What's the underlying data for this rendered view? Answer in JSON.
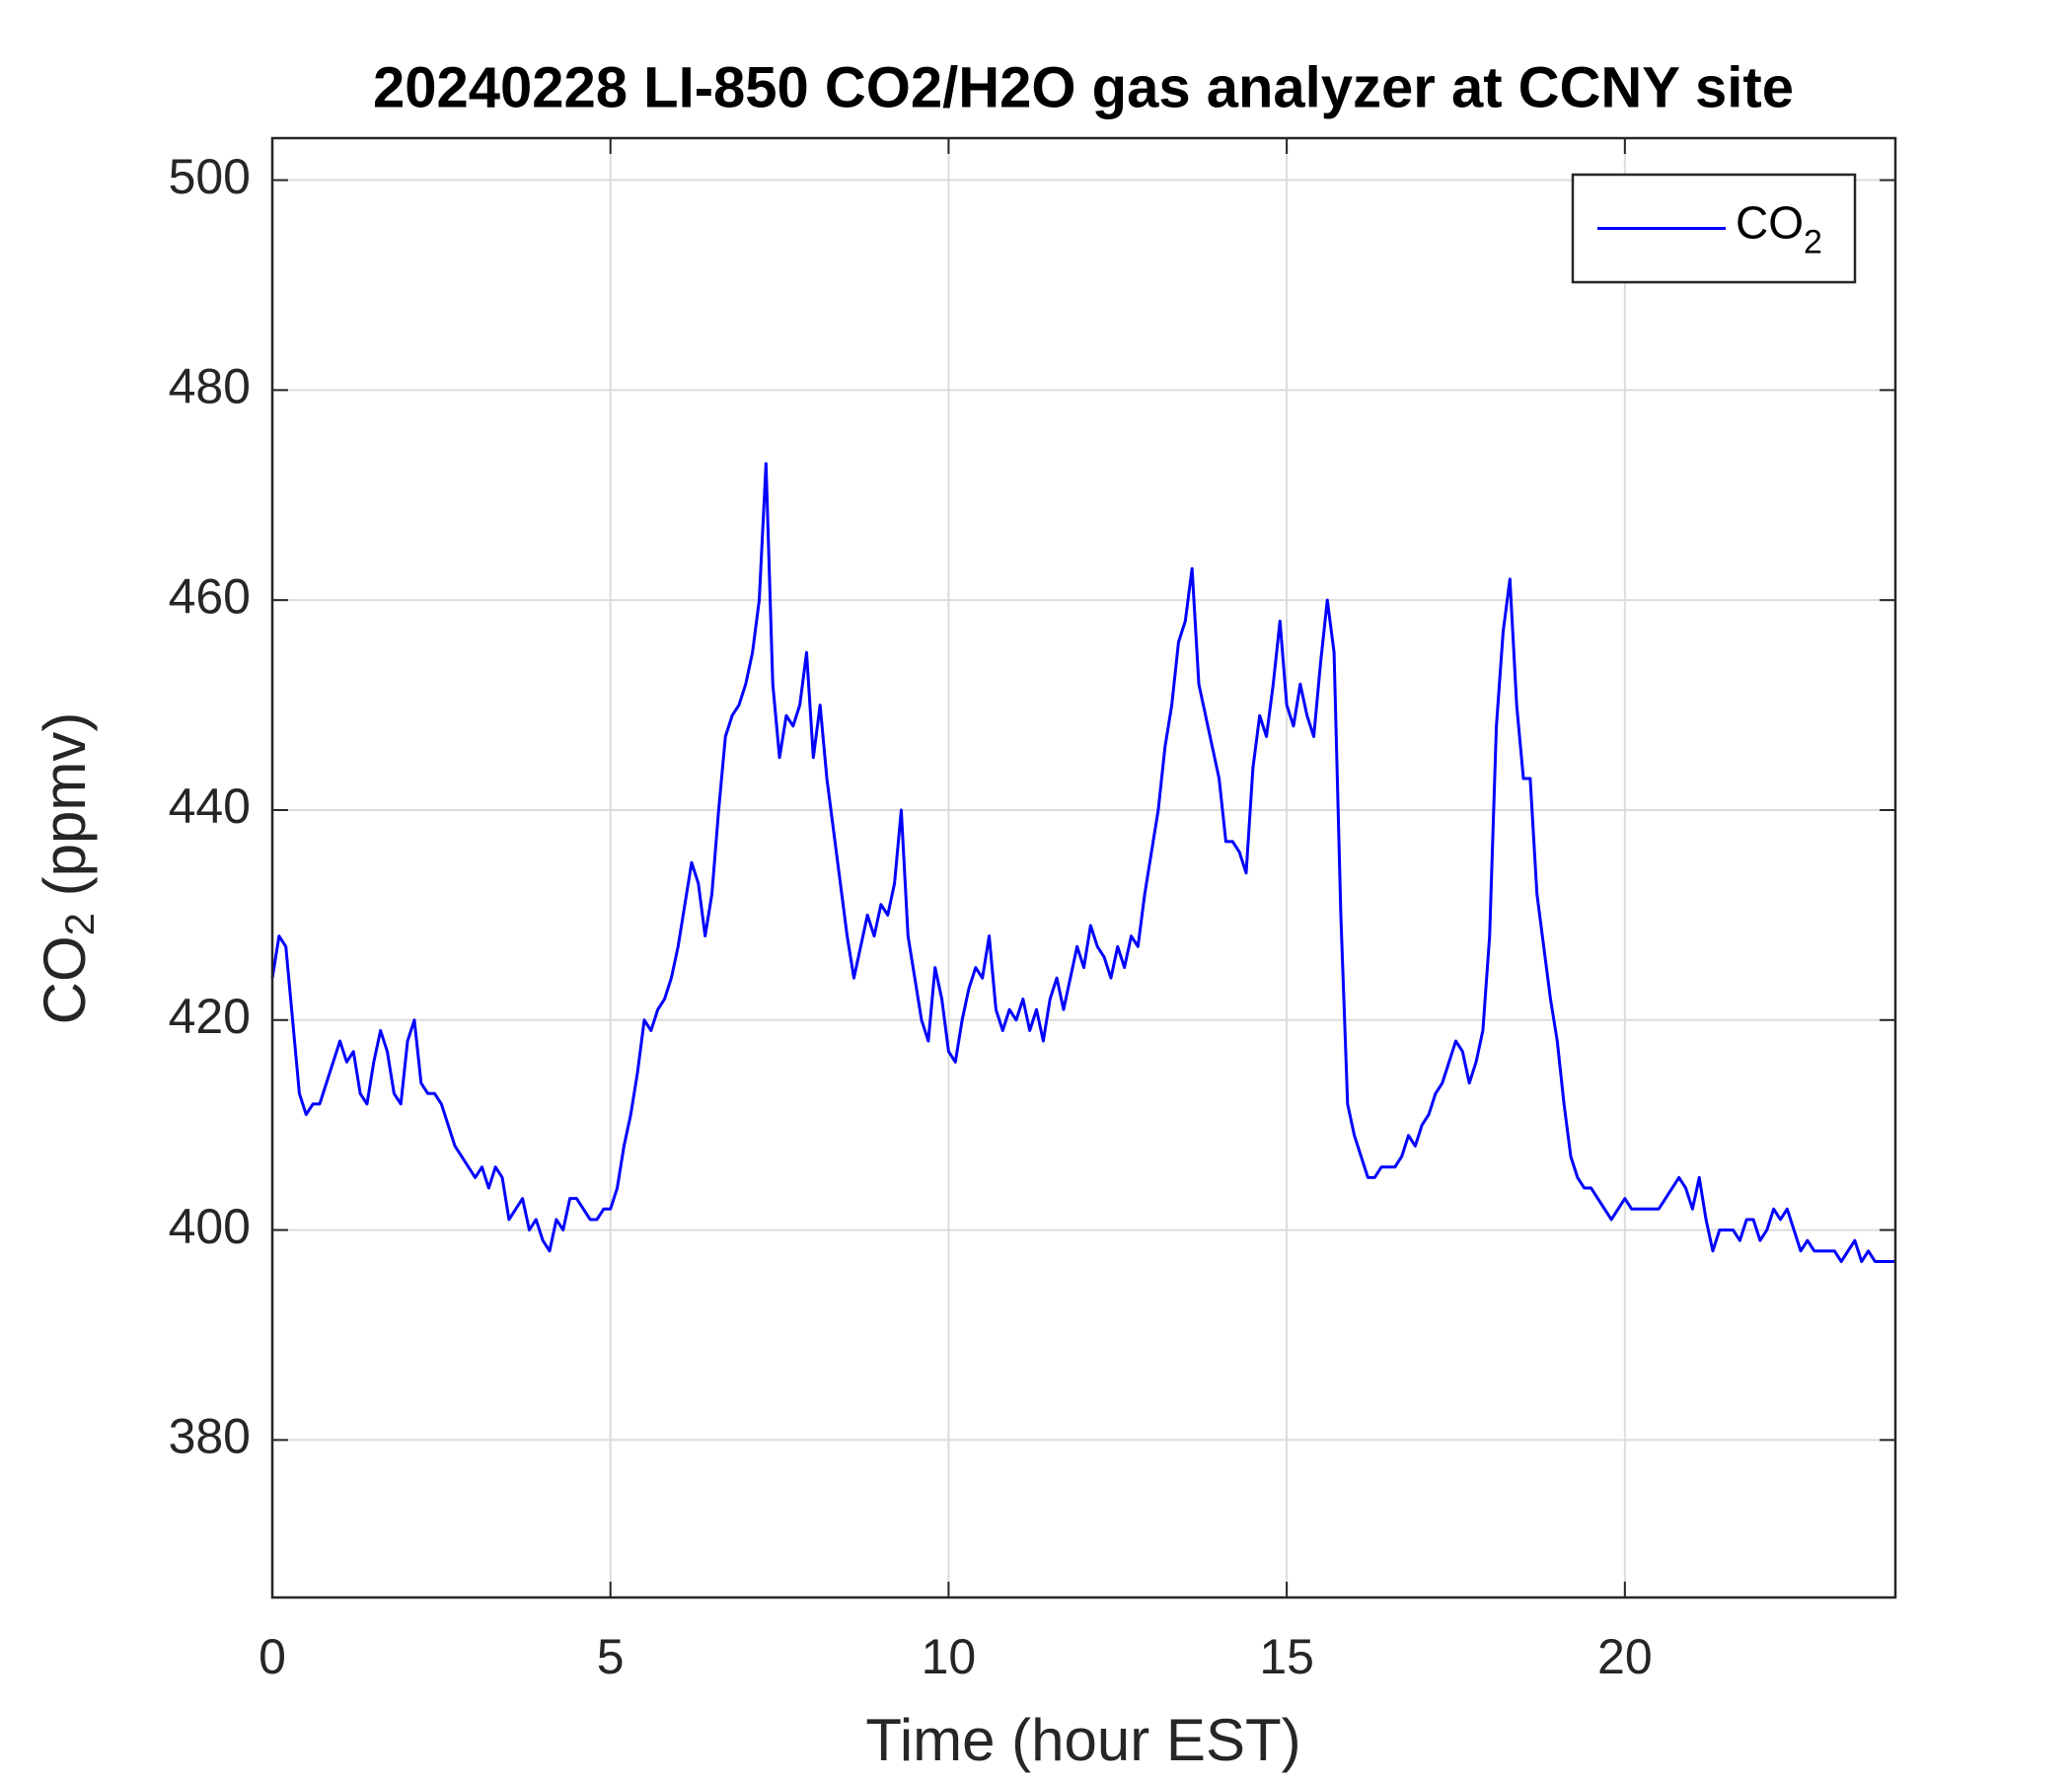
{
  "chart_data": {
    "type": "line",
    "title": "20240228 LI-850 CO2/H2O gas analyzer at CCNY site",
    "xlabel": "Time (hour EST)",
    "ylabel": {
      "text": "CO",
      "subscript": "2",
      "unit": "(ppmv)"
    },
    "xlim": [
      0,
      24
    ],
    "xticks": [
      0,
      5,
      10,
      15,
      20
    ],
    "ylim": [
      365,
      504
    ],
    "yticks": [
      380,
      400,
      420,
      440,
      460,
      480,
      500
    ],
    "grid": true,
    "legend": "northeast",
    "x": [
      0,
      0.1,
      0.2,
      0.3,
      0.4,
      0.5,
      0.6,
      0.7,
      0.8,
      0.9,
      1,
      1.1,
      1.2,
      1.3,
      1.4,
      1.5,
      1.6,
      1.7,
      1.8,
      1.9,
      2,
      2.1,
      2.2,
      2.3,
      2.4,
      2.5,
      2.6,
      2.7,
      2.8,
      2.9,
      3,
      3.1,
      3.2,
      3.3,
      3.4,
      3.5,
      3.6,
      3.7,
      3.8,
      3.9,
      4,
      4.1,
      4.2,
      4.3,
      4.4,
      4.5,
      4.6,
      4.7,
      4.8,
      4.9,
      5,
      5.1,
      5.2,
      5.3,
      5.4,
      5.5,
      5.6,
      5.7,
      5.8,
      5.9,
      6,
      6.1,
      6.2,
      6.3,
      6.4,
      6.5,
      6.6,
      6.7,
      6.8,
      6.9,
      7,
      7.1,
      7.2,
      7.3,
      7.4,
      7.5,
      7.6,
      7.7,
      7.8,
      7.9,
      8,
      8.1,
      8.2,
      8.3,
      8.4,
      8.5,
      8.6,
      8.7,
      8.8,
      8.9,
      9,
      9.1,
      9.2,
      9.3,
      9.4,
      9.5,
      9.6,
      9.7,
      9.8,
      9.9,
      10,
      10.1,
      10.2,
      10.3,
      10.4,
      10.5,
      10.6,
      10.7,
      10.8,
      10.9,
      11,
      11.1,
      11.2,
      11.3,
      11.4,
      11.5,
      11.6,
      11.7,
      11.8,
      11.9,
      12,
      12.1,
      12.2,
      12.3,
      12.4,
      12.5,
      12.6,
      12.7,
      12.8,
      12.9,
      13,
      13.1,
      13.2,
      13.3,
      13.4,
      13.5,
      13.6,
      13.7,
      13.8,
      13.9,
      14,
      14.1,
      14.2,
      14.3,
      14.4,
      14.5,
      14.6,
      14.7,
      14.8,
      14.9,
      15,
      15.1,
      15.2,
      15.3,
      15.4,
      15.5,
      15.6,
      15.7,
      15.8,
      15.9,
      16,
      16.1,
      16.2,
      16.3,
      16.4,
      16.5,
      16.6,
      16.7,
      16.8,
      16.9,
      17,
      17.1,
      17.2,
      17.3,
      17.4,
      17.5,
      17.6,
      17.7,
      17.8,
      17.9,
      18,
      18.1,
      18.2,
      18.3,
      18.4,
      18.5,
      18.6,
      18.7,
      18.8,
      18.9,
      19,
      19.1,
      19.2,
      19.3,
      19.4,
      19.5,
      19.6,
      19.7,
      19.8,
      19.9,
      20,
      20.1,
      20.2,
      20.3,
      20.4,
      20.5,
      20.6,
      20.7,
      20.8,
      20.9,
      21,
      21.1,
      21.2,
      21.3,
      21.4,
      21.5,
      21.6,
      21.7,
      21.8,
      21.9,
      22,
      22.1,
      22.2,
      22.3,
      22.4,
      22.5,
      22.6,
      22.7,
      22.8,
      22.9,
      23,
      23.1,
      23.2,
      23.3,
      23.4,
      23.5,
      23.6,
      23.7,
      23.8,
      23.9,
      24
    ],
    "series": [
      {
        "name": {
          "text": "CO",
          "subscript": "2"
        },
        "color": "#0000ff",
        "values": [
          424,
          428,
          427,
          420,
          413,
          411,
          412,
          412,
          414,
          416,
          418,
          416,
          417,
          413,
          412,
          416,
          419,
          417,
          413,
          412,
          418,
          420,
          414,
          413,
          413,
          412,
          410,
          408,
          407,
          406,
          405,
          406,
          404,
          406,
          405,
          401,
          402,
          403,
          400,
          401,
          399,
          398,
          401,
          400,
          403,
          403,
          402,
          401,
          401,
          402,
          402,
          404,
          408,
          411,
          415,
          420,
          419,
          421,
          422,
          424,
          427,
          431,
          435,
          433,
          428,
          432,
          440,
          447,
          449,
          450,
          452,
          455,
          460,
          473,
          452,
          445,
          449,
          448,
          450,
          455,
          445,
          450,
          443,
          438,
          433,
          428,
          424,
          427,
          430,
          428,
          431,
          430,
          433,
          440,
          428,
          424,
          420,
          418,
          425,
          422,
          417,
          416,
          420,
          423,
          425,
          424,
          428,
          421,
          419,
          421,
          420,
          422,
          419,
          421,
          418,
          422,
          424,
          421,
          424,
          427,
          425,
          429,
          427,
          426,
          424,
          427,
          425,
          428,
          427,
          432,
          436,
          440,
          446,
          450,
          456,
          458,
          463,
          452,
          449,
          446,
          443,
          437,
          437,
          436,
          434,
          444,
          449,
          447,
          452,
          458,
          450,
          448,
          452,
          449,
          447,
          454,
          460,
          455,
          430,
          412,
          409,
          407,
          405,
          405,
          406,
          406,
          406,
          407,
          409,
          408,
          410,
          411,
          413,
          414,
          416,
          418,
          417,
          414,
          416,
          419,
          428,
          448,
          457,
          462,
          450,
          443,
          443,
          432,
          427,
          422,
          418,
          412,
          407,
          405,
          404,
          404,
          403,
          402,
          401,
          402,
          403,
          402,
          402,
          402,
          402,
          402,
          403,
          404,
          405,
          404,
          402,
          405,
          401,
          398,
          400,
          400,
          400,
          399,
          401,
          401,
          399,
          400,
          402,
          401,
          402,
          400,
          398,
          399,
          398,
          398,
          398,
          398,
          397,
          398,
          399,
          397,
          398,
          397,
          397,
          397,
          397
        ]
      }
    ]
  }
}
